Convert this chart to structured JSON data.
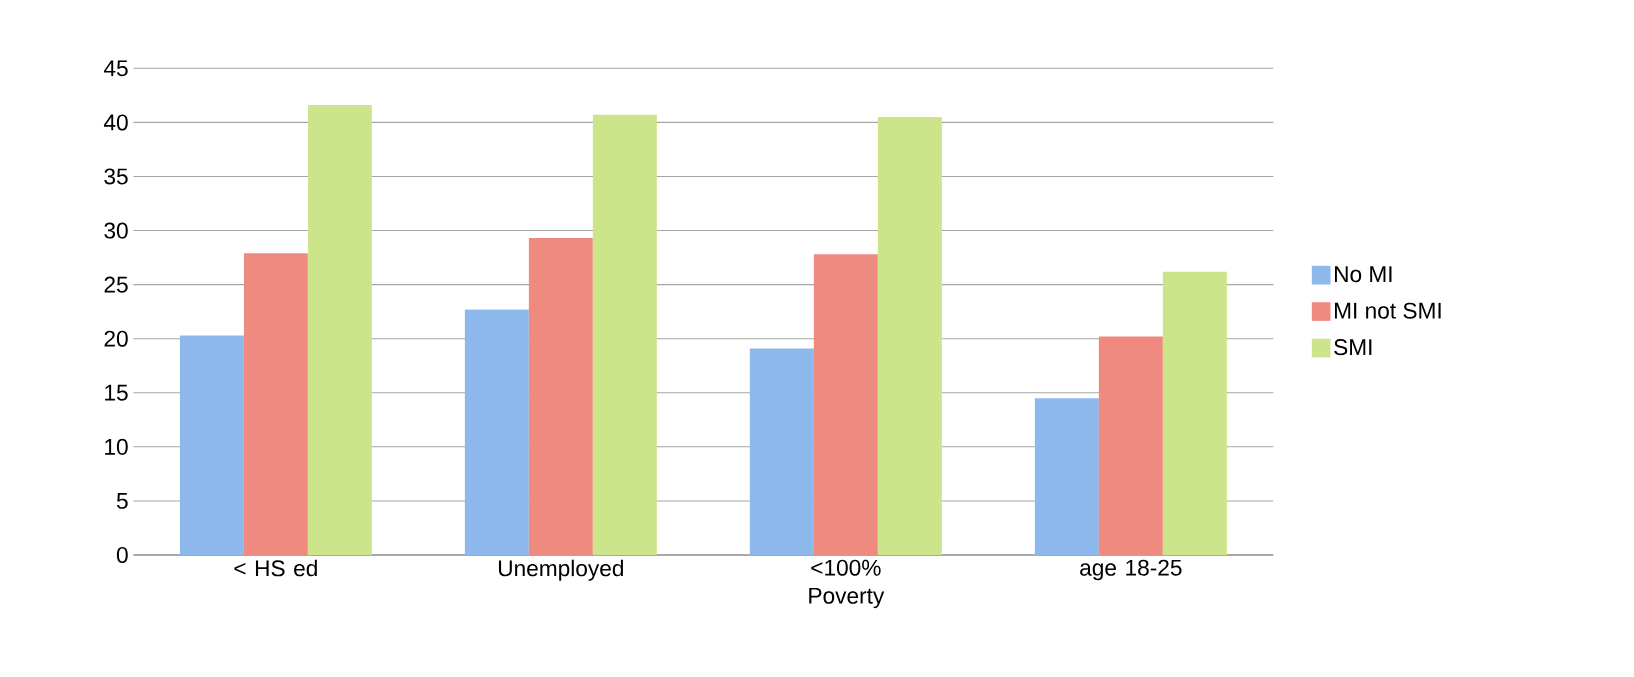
{
  "chart_data": {
    "type": "bar",
    "categories": [
      "< HS ed",
      "Unemployed",
      "<100% Poverty",
      "age 18-25"
    ],
    "series": [
      {
        "name": "No MI",
        "color": "#8db8ec",
        "values": [
          20.3,
          22.7,
          19.1,
          14.5
        ]
      },
      {
        "name": "MI not SMI",
        "color": "#ef8a80",
        "values": [
          27.9,
          29.3,
          27.8,
          20.2
        ]
      },
      {
        "name": "SMI",
        "color": "#cce58a",
        "values": [
          41.6,
          40.7,
          40.5,
          26.2
        ]
      }
    ],
    "ylim": [
      0,
      45
    ],
    "yticks": [
      0,
      5,
      10,
      15,
      20,
      25,
      30,
      35,
      40,
      45
    ],
    "grid": "y",
    "legend": "right"
  }
}
